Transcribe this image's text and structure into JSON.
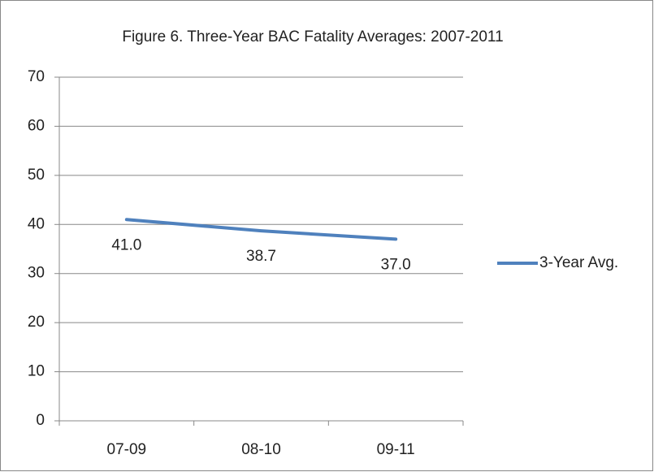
{
  "chart_data": {
    "type": "line",
    "title": "Figure 6.  Three-Year  BAC Fatality Averages:  2007-2011",
    "categories": [
      "07-09",
      "08-10",
      "09-11"
    ],
    "series": [
      {
        "name": "3-Year Avg.",
        "color": "#4f81bd",
        "values": [
          41.0,
          38.7,
          37.0
        ],
        "value_labels": [
          "41.0",
          "38.7",
          "37.0"
        ]
      }
    ],
    "ylim": [
      0,
      70
    ],
    "yticks": [
      0,
      10,
      20,
      30,
      40,
      50,
      60,
      70
    ],
    "grid": true,
    "legend": "right"
  }
}
